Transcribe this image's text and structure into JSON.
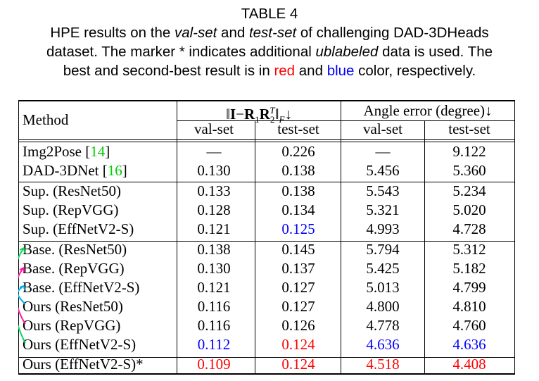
{
  "caption": {
    "table_no": "TABLE 4",
    "l2_a": "HPE results on the ",
    "l2_val": "val-set",
    "l2_b": " and ",
    "l2_test": "test-set",
    "l2_c": " of challenging DAD-3DHeads",
    "l3_a": "dataset. The marker * indicates additional ",
    "l3_unl": "ublabeled",
    "l3_b": " data is used. The",
    "l4_a": "best and second-best result is in ",
    "l4_red": "red",
    "l4_b": " and ",
    "l4_blue": "blue",
    "l4_c": " color, respectively."
  },
  "header": {
    "method": "Method",
    "metric_prefix": "‖",
    "metric_I": "I",
    "metric_minus": "−",
    "metric_R1": "R",
    "metric_sub1": "1",
    "metric_R2": "R",
    "metric_sub2": "2",
    "metric_supT": "T",
    "metric_suffix": "‖",
    "metric_subF": "F",
    "metric_arrow": "↓",
    "angle": "Angle error (degree)↓",
    "val": "val-set",
    "test": "test-set"
  },
  "rows": [
    {
      "method": "Img2Pose [",
      "ref": "14",
      "method_end": "]",
      "v1": "—",
      "v2": "0.226",
      "v3": "—",
      "v4": "9.122"
    },
    {
      "method": "DAD-3DNet [",
      "ref": "16",
      "method_end": "]",
      "v1": "0.130",
      "v2": "0.138",
      "v3": "5.456",
      "v4": "5.360"
    },
    {
      "method": "Sup. (ResNet50)",
      "v1": "0.133",
      "v2": "0.138",
      "v3": "5.543",
      "v4": "5.234"
    },
    {
      "method": "Sup. (RepVGG)",
      "v1": "0.128",
      "v2": "0.134",
      "v3": "5.321",
      "v4": "5.020"
    },
    {
      "method": "Sup. (EffNetV2-S)",
      "v1": "0.121",
      "v2": "0.125",
      "v3": "4.993",
      "v4": "4.728"
    },
    {
      "method": "Base. (ResNet50)",
      "v1": "0.138",
      "v2": "0.145",
      "v3": "5.794",
      "v4": "5.312"
    },
    {
      "method": "Base. (RepVGG)",
      "v1": "0.130",
      "v2": "0.137",
      "v3": "5.425",
      "v4": "5.182"
    },
    {
      "method": "Base. (EffNetV2-S)",
      "v1": "0.121",
      "v2": "0.127",
      "v3": "5.013",
      "v4": "4.799"
    },
    {
      "method": "Ours (ResNet50)",
      "v1": "0.116",
      "v2": "0.127",
      "v3": "4.800",
      "v4": "4.810"
    },
    {
      "method": "Ours (RepVGG)",
      "v1": "0.116",
      "v2": "0.126",
      "v3": "4.778",
      "v4": "4.760"
    },
    {
      "method": "Ours (EffNetV2-S)",
      "v1": "0.112",
      "v2": "0.124",
      "v3": "4.636",
      "v4": "4.636"
    },
    {
      "method": "Ours (EffNetV2-S)*",
      "v1": "0.109",
      "v2": "0.124",
      "v3": "4.518",
      "v4": "4.408"
    }
  ],
  "colors": {
    "best": "#ff0000",
    "second": "#0000ff",
    "ref": "#00cc00",
    "arrow_green": "#00dd55",
    "arrow_pink": "#ff1aa0",
    "arrow_cyan": "#00b0f0"
  }
}
